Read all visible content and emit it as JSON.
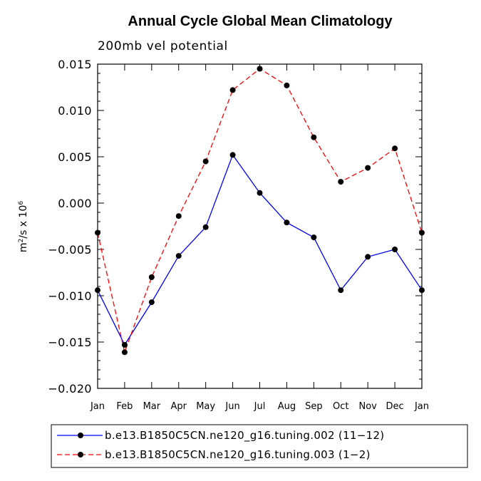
{
  "chart_data": {
    "type": "line",
    "title": "Annual Cycle Global Mean Climatology",
    "subtitle": "200mb vel potential",
    "ylabel_main": "m",
    "ylabel_sup": "2",
    "ylabel_mid": "/s x 10",
    "ylabel_sup2": "6",
    "xlabel": "",
    "categories": [
      "Jan",
      "Feb",
      "Mar",
      "Apr",
      "May",
      "Jun",
      "Jul",
      "Aug",
      "Sep",
      "Oct",
      "Nov",
      "Dec",
      "Jan"
    ],
    "ylim": [
      -0.02,
      0.015
    ],
    "yticks": [
      {
        "value": 0.015,
        "label": "0.015"
      },
      {
        "value": 0.01,
        "label": "0.010"
      },
      {
        "value": 0.005,
        "label": "0.005"
      },
      {
        "value": 0.0,
        "label": "0.000"
      },
      {
        "value": -0.005,
        "label": "−0.005"
      },
      {
        "value": -0.01,
        "label": "−0.010"
      },
      {
        "value": -0.015,
        "label": "−0.015"
      },
      {
        "value": -0.02,
        "label": "−0.020"
      }
    ],
    "grid": false,
    "legend_position": "bottom",
    "series": [
      {
        "name": "b.e13.B1850C5CN.ne120_g16.tuning.002 (11−12)",
        "color": "#0000ff",
        "dash": "solid",
        "values": [
          -0.0094,
          -0.0153,
          -0.0107,
          -0.0057,
          -0.0026,
          0.0052,
          0.0011,
          -0.0021,
          -0.0037,
          -0.0094,
          -0.0058,
          -0.005,
          -0.0094
        ]
      },
      {
        "name": "b.e13.B1850C5CN.ne120_g16.tuning.003 (1−2)",
        "color": "#ff0000",
        "dash": "dashed",
        "values": [
          -0.0032,
          -0.0161,
          -0.008,
          -0.0014,
          0.0045,
          0.0122,
          0.0145,
          0.0127,
          0.0071,
          0.0023,
          0.0038,
          0.0059,
          -0.0032
        ]
      }
    ]
  }
}
